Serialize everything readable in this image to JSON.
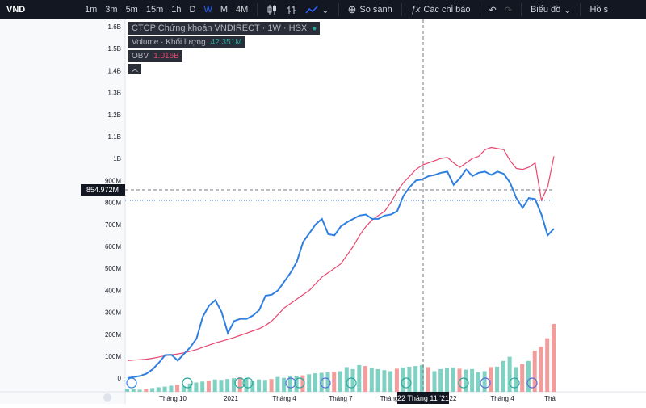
{
  "toolbar": {
    "symbol": "VND",
    "timeframes": [
      "1m",
      "3m",
      "5m",
      "15m",
      "1h",
      "D",
      "W",
      "M",
      "4M"
    ],
    "active_timeframe": "W",
    "compare_label": "So sánh",
    "indicators_label": "Các chỉ báo",
    "chart_menu_label": "Biểu đồ",
    "profile_label": "Hồ s"
  },
  "legend": {
    "title": "CTCP Chứng khoán VNDIRECT · 1W · HSX",
    "volume_label": "Volume · Khối lượng",
    "volume_value": "42.351M",
    "obv_label": "OBV",
    "obv_value": "1.016B"
  },
  "crosshair": {
    "price_label": "854.972M",
    "time_label": "22 Tháng 11 '21"
  },
  "colors": {
    "obv_line": "#2f7fe0",
    "obv_ma": "#e8476f",
    "volume_up": "#7fd1c3",
    "volume_down": "#f29c9c",
    "toolbar_bg": "#131722",
    "active_tf": "#2962ff"
  },
  "chart_data": {
    "type": "line",
    "y_axis_labels": [
      "1.6B",
      "1.5B",
      "1.4B",
      "1.3B",
      "1.2B",
      "1.1B",
      "1B",
      "900M",
      "800M",
      "700M",
      "600M",
      "500M",
      "400M",
      "300M",
      "200M",
      "100M",
      "0"
    ],
    "x_axis_labels": [
      "Tháng 10",
      "2021",
      "Tháng 4",
      "Tháng 7",
      "Tháng",
      "22",
      "Tháng 4",
      "Thá"
    ],
    "ylim": [
      0,
      1600000000
    ],
    "series": [
      {
        "values": [
          0,
          5,
          10,
          20,
          40,
          70,
          105,
          106,
          80,
          110,
          140,
          180,
          280,
          330,
          355,
          300,
          205,
          260,
          270,
          270,
          285,
          310,
          375,
          380,
          400,
          440,
          480,
          530,
          620,
          660,
          700,
          725,
          655,
          650,
          690,
          710,
          725,
          740,
          745,
          725,
          725,
          740,
          745,
          760,
          830,
          870,
          900,
          905,
          920,
          925,
          935,
          940,
          880,
          910,
          950,
          920,
          935,
          940,
          925,
          940,
          930,
          890,
          820,
          775,
          820,
          815,
          745,
          650,
          680
        ]
      },
      {
        "values": [
          80,
          82,
          84,
          86,
          90,
          96,
          102,
          106,
          110,
          115,
          122,
          130,
          140,
          150,
          160,
          168,
          176,
          185,
          195,
          205,
          215,
          225,
          240,
          260,
          290,
          320,
          340,
          360,
          380,
          400,
          430,
          460,
          480,
          500,
          520,
          560,
          600,
          650,
          690,
          720,
          740,
          760,
          800,
          850,
          890,
          920,
          950,
          970,
          980,
          990,
          1000,
          1005,
          980,
          960,
          980,
          1000,
          1010,
          1040,
          1050,
          1045,
          1040,
          990,
          955,
          950,
          960,
          980,
          810,
          870,
          1010
        ]
      }
    ],
    "volume": [
      15,
      12,
      10,
      14,
      18,
      22,
      25,
      30,
      35,
      28,
      40,
      45,
      50,
      55,
      60,
      58,
      62,
      66,
      70,
      65,
      55,
      60,
      58,
      62,
      72,
      68,
      78,
      75,
      80,
      85,
      90,
      92,
      95,
      98,
      100,
      120,
      110,
      130,
      125,
      115,
      110,
      105,
      100,
      112,
      118,
      122,
      125,
      130,
      120,
      100,
      110,
      115,
      118,
      112,
      108,
      110,
      95,
      100,
      120,
      122,
      150,
      170,
      120,
      135,
      150,
      200,
      220,
      260,
      330
    ]
  }
}
